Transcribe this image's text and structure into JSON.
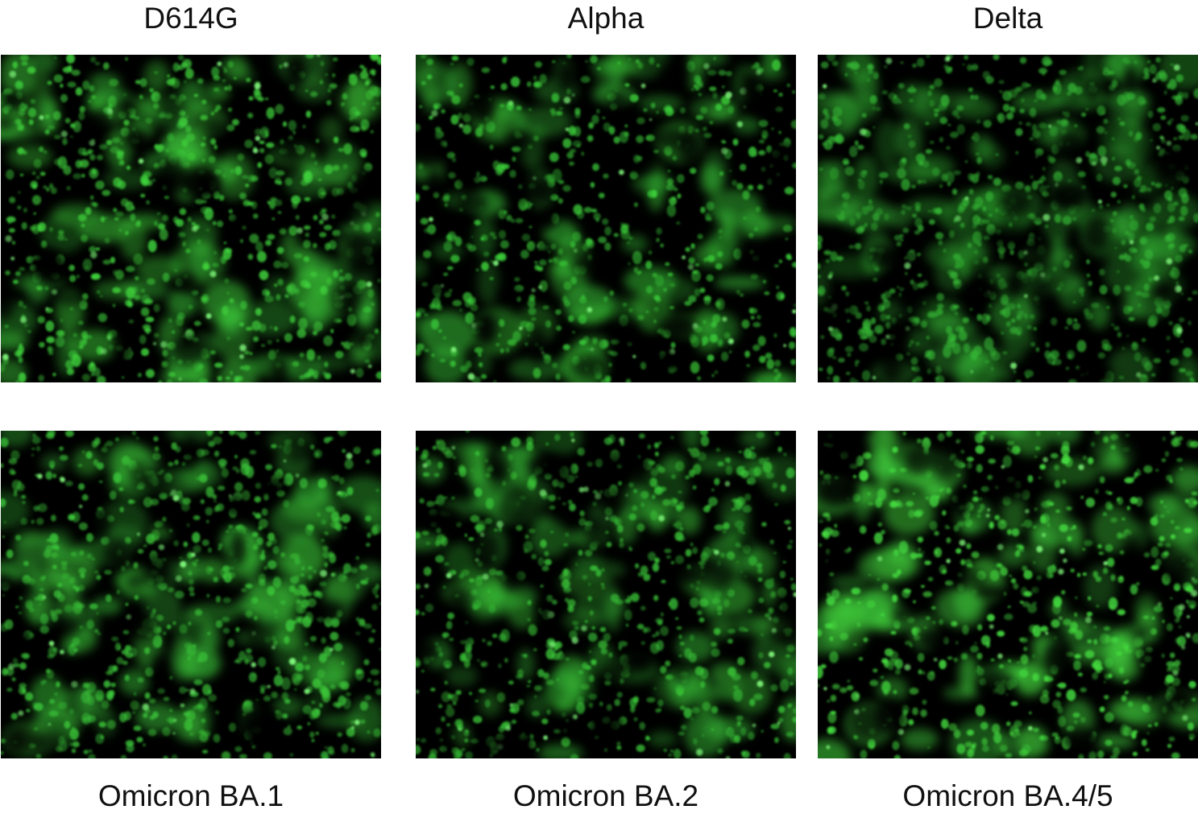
{
  "figure": {
    "panels": [
      {
        "label": "D614G",
        "label_position": "top",
        "fluorescence": "#3fd23c",
        "density": 0.78,
        "brightness": 0.85
      },
      {
        "label": "Alpha",
        "label_position": "top",
        "fluorescence": "#3cd03a",
        "density": 0.62,
        "brightness": 0.8
      },
      {
        "label": "Delta",
        "label_position": "top",
        "fluorescence": "#35b835",
        "density": 0.85,
        "brightness": 0.65
      },
      {
        "label": "Omicron BA.1",
        "label_position": "bottom",
        "fluorescence": "#3cc83a",
        "density": 0.8,
        "brightness": 0.78
      },
      {
        "label": "Omicron BA.2",
        "label_position": "bottom",
        "fluorescence": "#3ccc3a",
        "density": 0.72,
        "brightness": 0.75
      },
      {
        "label": "Omicron BA.4/5",
        "label_position": "bottom",
        "fluorescence": "#45dd40",
        "density": 0.7,
        "brightness": 0.95
      }
    ],
    "background": "#000000"
  }
}
